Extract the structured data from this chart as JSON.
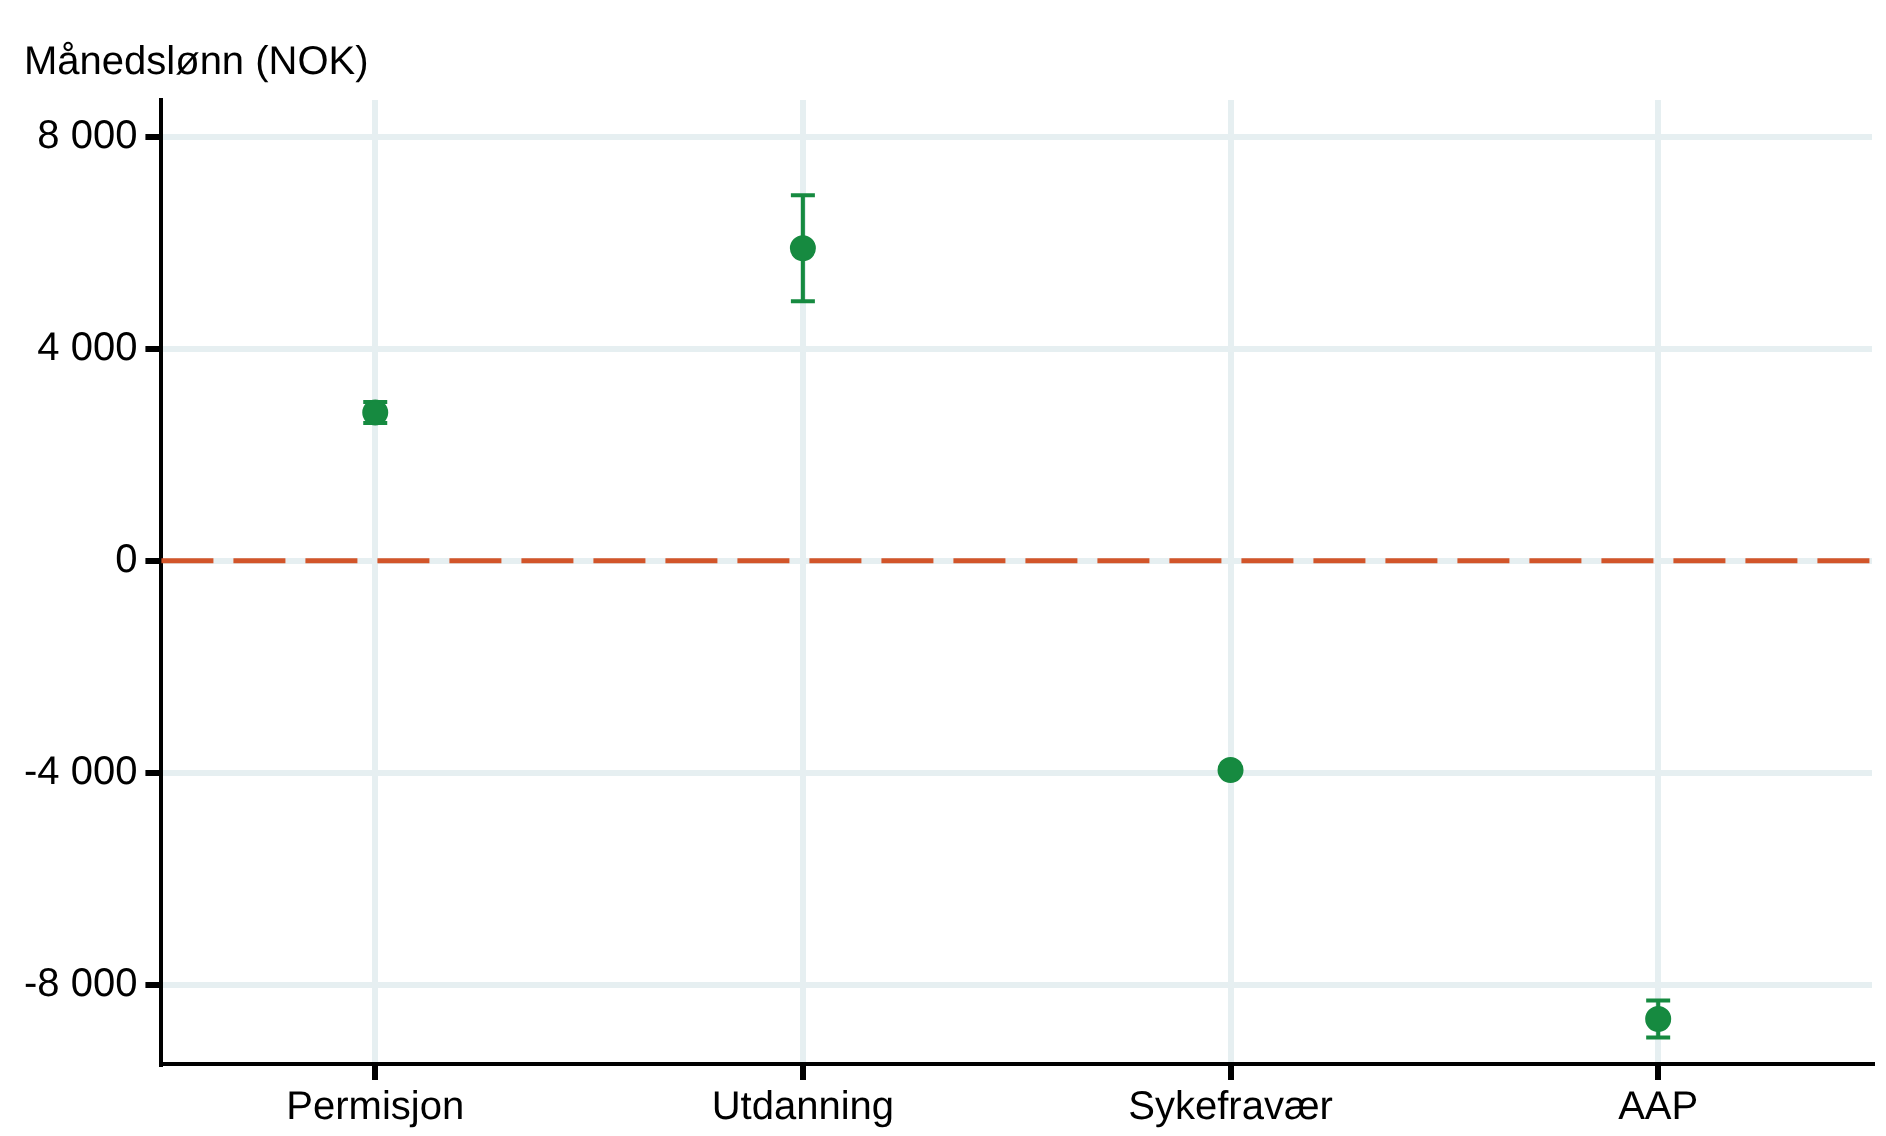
{
  "chart_data": {
    "type": "scatter",
    "ylabel": "Månedslønn (NOK)",
    "categories": [
      "Permisjon",
      "Utdanning",
      "Sykefravær",
      "AAP"
    ],
    "series": [
      {
        "color": "#168a40",
        "values": [
          2800,
          5900,
          -3950,
          -8650
        ],
        "errors": [
          200,
          1000,
          null,
          350
        ]
      }
    ],
    "ylim": [
      -9500,
      8700
    ],
    "yticks": [
      {
        "value": -8000,
        "label": "-8 000"
      },
      {
        "value": -4000,
        "label": "-4 000"
      },
      0,
      {
        "value": 4000,
        "label": "4 000"
      },
      {
        "value": 8000,
        "label": "8 000"
      }
    ],
    "ref_lines": [
      {
        "axis": "y",
        "value": 0,
        "color": "#d2552a",
        "line_style": "dashed"
      }
    ],
    "grid": true,
    "marker": "circle",
    "legend": false
  }
}
